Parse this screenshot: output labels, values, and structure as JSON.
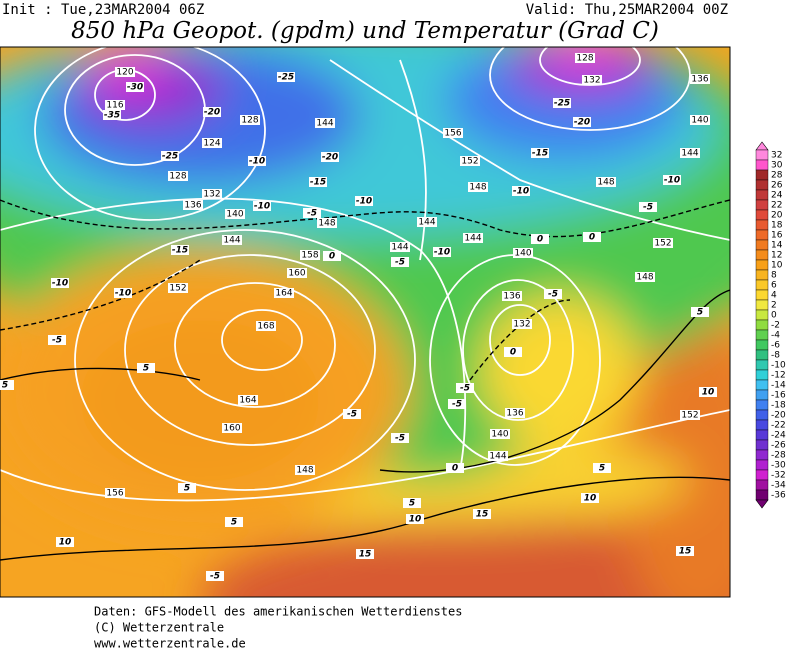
{
  "header": {
    "init": "Init : Tue,23MAR2004 06Z",
    "valid": "Valid: Thu,25MAR2004 00Z",
    "title": "850 hPa Geopot. (gpdm) und Temperatur (Grad C)"
  },
  "colorbar": {
    "values": [
      32,
      30,
      28,
      26,
      24,
      22,
      20,
      18,
      16,
      14,
      12,
      10,
      8,
      6,
      4,
      2,
      0,
      -2,
      -4,
      -6,
      -8,
      -10,
      -12,
      -14,
      -16,
      -18,
      -20,
      -22,
      -24,
      -26,
      -28,
      -30,
      -32,
      -34,
      -36
    ],
    "colors": [
      "#ff88dd",
      "#ff55cc",
      "#a02828",
      "#b03030",
      "#c03838",
      "#d04040",
      "#e04a3a",
      "#e85a30",
      "#ee6a28",
      "#f07a20",
      "#f48c1c",
      "#f8a018",
      "#f8b420",
      "#fac828",
      "#fcd830",
      "#f0e840",
      "#c8e840",
      "#90dc40",
      "#60d050",
      "#40c860",
      "#30c080",
      "#30c8b0",
      "#30d0d8",
      "#40c0f0",
      "#40a0f0",
      "#4080f0",
      "#4060e8",
      "#4848e0",
      "#5838d8",
      "#7030d0",
      "#9028d0",
      "#b020d0",
      "#d020d0",
      "#a010a0",
      "#700070"
    ]
  },
  "height_labels": [
    120,
    116,
    128,
    124,
    128,
    132,
    136,
    140,
    144,
    144,
    156,
    152,
    148,
    144,
    144,
    144,
    140,
    136,
    132,
    136,
    140,
    144,
    148,
    156,
    160,
    164,
    168,
    164,
    160,
    158,
    152,
    148,
    148,
    152,
    148,
    140,
    136,
    132,
    128,
    144,
    152
  ],
  "temperature_labels": [
    -30,
    -35,
    -20,
    -25,
    -20,
    -25,
    -10,
    -15,
    -5,
    -10,
    -10,
    -15,
    -10,
    -10,
    -5,
    -25,
    -20,
    -15,
    -10,
    -10,
    -5,
    0,
    0,
    -5,
    -10,
    0,
    0,
    -5,
    -5,
    -5,
    -5,
    -5,
    0,
    5,
    10,
    15,
    10,
    15,
    10,
    5,
    5,
    5,
    5,
    5,
    5,
    10,
    15,
    -5
  ],
  "footer": {
    "lines": [
      "Daten: GFS-Modell des amerikanischen Wetterdienstes",
      "(C) Wetterzentrale",
      "www.wetterzentrale.de"
    ]
  }
}
